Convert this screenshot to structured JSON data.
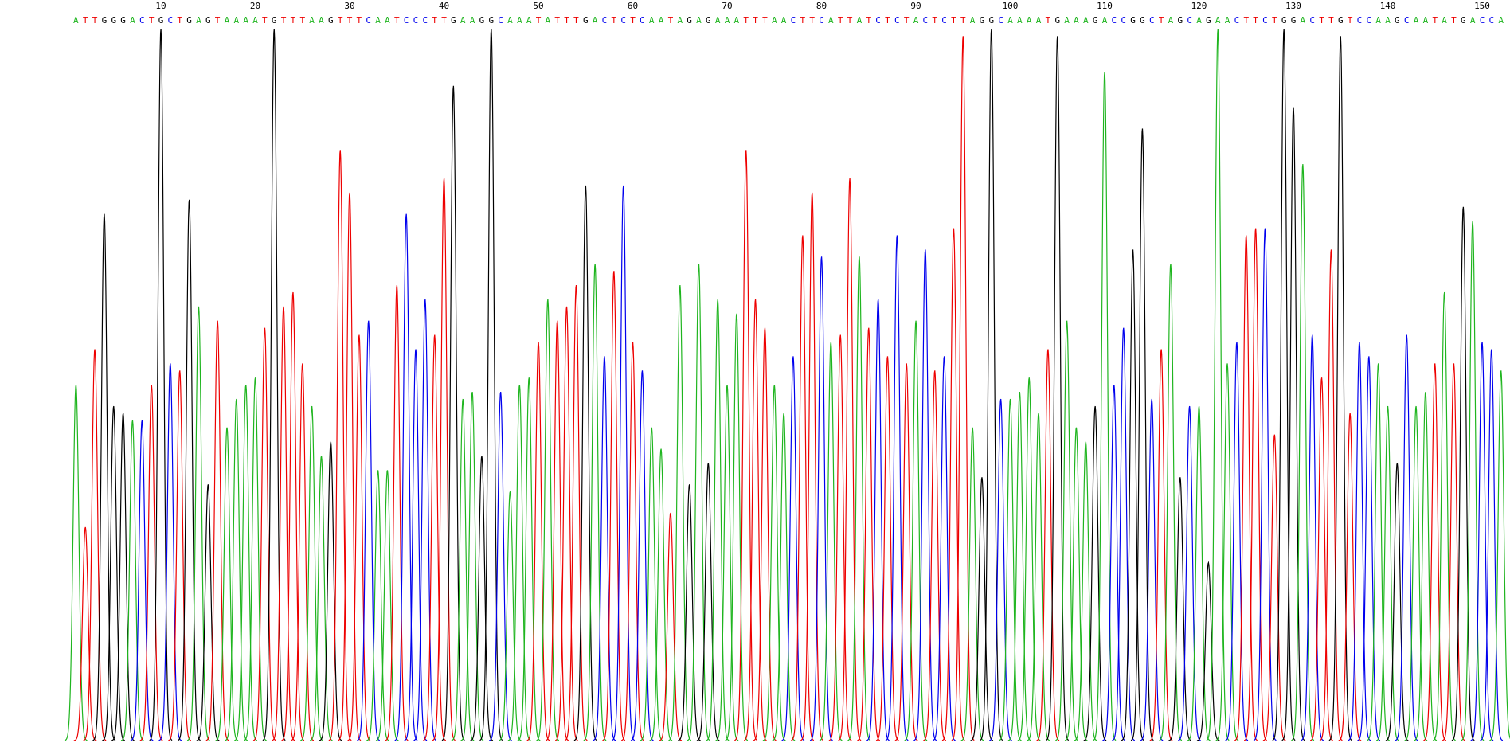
{
  "chart_data": {
    "type": "chromatogram",
    "bases": [
      "A",
      "T",
      "T",
      "G",
      "G",
      "G",
      "A",
      "C",
      "T",
      "G",
      "C",
      "T",
      "G",
      "A",
      "G",
      "T",
      "A",
      "A",
      "A",
      "A",
      "T",
      "G",
      "T",
      "T",
      "T",
      "A",
      "A",
      "G",
      "T",
      "T",
      "T",
      "C",
      "A",
      "A",
      "T",
      "C",
      "C",
      "C",
      "T",
      "T",
      "G",
      "A",
      "A",
      "G",
      "G",
      "C",
      "A",
      "A",
      "A",
      "T",
      "A",
      "T",
      "T",
      "T",
      "G",
      "A",
      "C",
      "T",
      "C",
      "T",
      "C",
      "A",
      "A",
      "T",
      "A",
      "G",
      "A",
      "G",
      "A",
      "A",
      "A",
      "T",
      "T",
      "T",
      "A",
      "A",
      "C",
      "T",
      "T",
      "C",
      "A",
      "T",
      "T",
      "A",
      "T",
      "C",
      "T",
      "C",
      "T",
      "A",
      "C",
      "T",
      "C",
      "T",
      "T",
      "A",
      "G",
      "G",
      "C",
      "A",
      "A",
      "A",
      "A",
      "T",
      "G",
      "A",
      "A",
      "A",
      "G",
      "A",
      "C",
      "C",
      "G",
      "G",
      "C",
      "T",
      "A",
      "G",
      "C",
      "A",
      "G",
      "A",
      "A",
      "C",
      "T",
      "T",
      "C",
      "T",
      "G",
      "G",
      "A",
      "C",
      "T",
      "T",
      "G",
      "T",
      "C",
      "C",
      "A",
      "A",
      "G",
      "C",
      "A",
      "A",
      "T",
      "A",
      "T",
      "G",
      "A",
      "C",
      "C",
      "A"
    ],
    "peaks": [
      50,
      30,
      55,
      74,
      47,
      46,
      45,
      45,
      50,
      100,
      53,
      52,
      76,
      61,
      36,
      59,
      44,
      48,
      50,
      51,
      58,
      100,
      61,
      63,
      53,
      47,
      40,
      42,
      83,
      77,
      57,
      59,
      38,
      38,
      64,
      74,
      55,
      62,
      57,
      79,
      92,
      48,
      49,
      40,
      100,
      49,
      35,
      50,
      51,
      56,
      62,
      59,
      61,
      64,
      78,
      67,
      54,
      66,
      78,
      56,
      52,
      44,
      41,
      32,
      64,
      36,
      67,
      39,
      62,
      50,
      60,
      83,
      62,
      58,
      50,
      46,
      54,
      71,
      77,
      68,
      56,
      57,
      79,
      68,
      58,
      62,
      54,
      71,
      53,
      59,
      69,
      52,
      54,
      72,
      99,
      44,
      37,
      100,
      48,
      48,
      49,
      51,
      46,
      55,
      99,
      59,
      44,
      42,
      47,
      94,
      50,
      58,
      69,
      86,
      48,
      55,
      67,
      37,
      47,
      47,
      25,
      100,
      53,
      56,
      71,
      72,
      72,
      43,
      100,
      89,
      81,
      57,
      51,
      69,
      99,
      46,
      56,
      54,
      53,
      47,
      39,
      57,
      47,
      49,
      53,
      63,
      53,
      75,
      73,
      56,
      55,
      52
    ],
    "xticks": [
      10,
      20,
      30,
      40,
      50,
      60,
      70,
      80,
      90,
      100,
      110,
      120,
      130,
      140,
      150
    ],
    "ylim": [
      0,
      100
    ],
    "colors": {
      "A": "#1fb51f",
      "C": "#0000ee",
      "G": "#000000",
      "T": "#ee0000"
    }
  }
}
